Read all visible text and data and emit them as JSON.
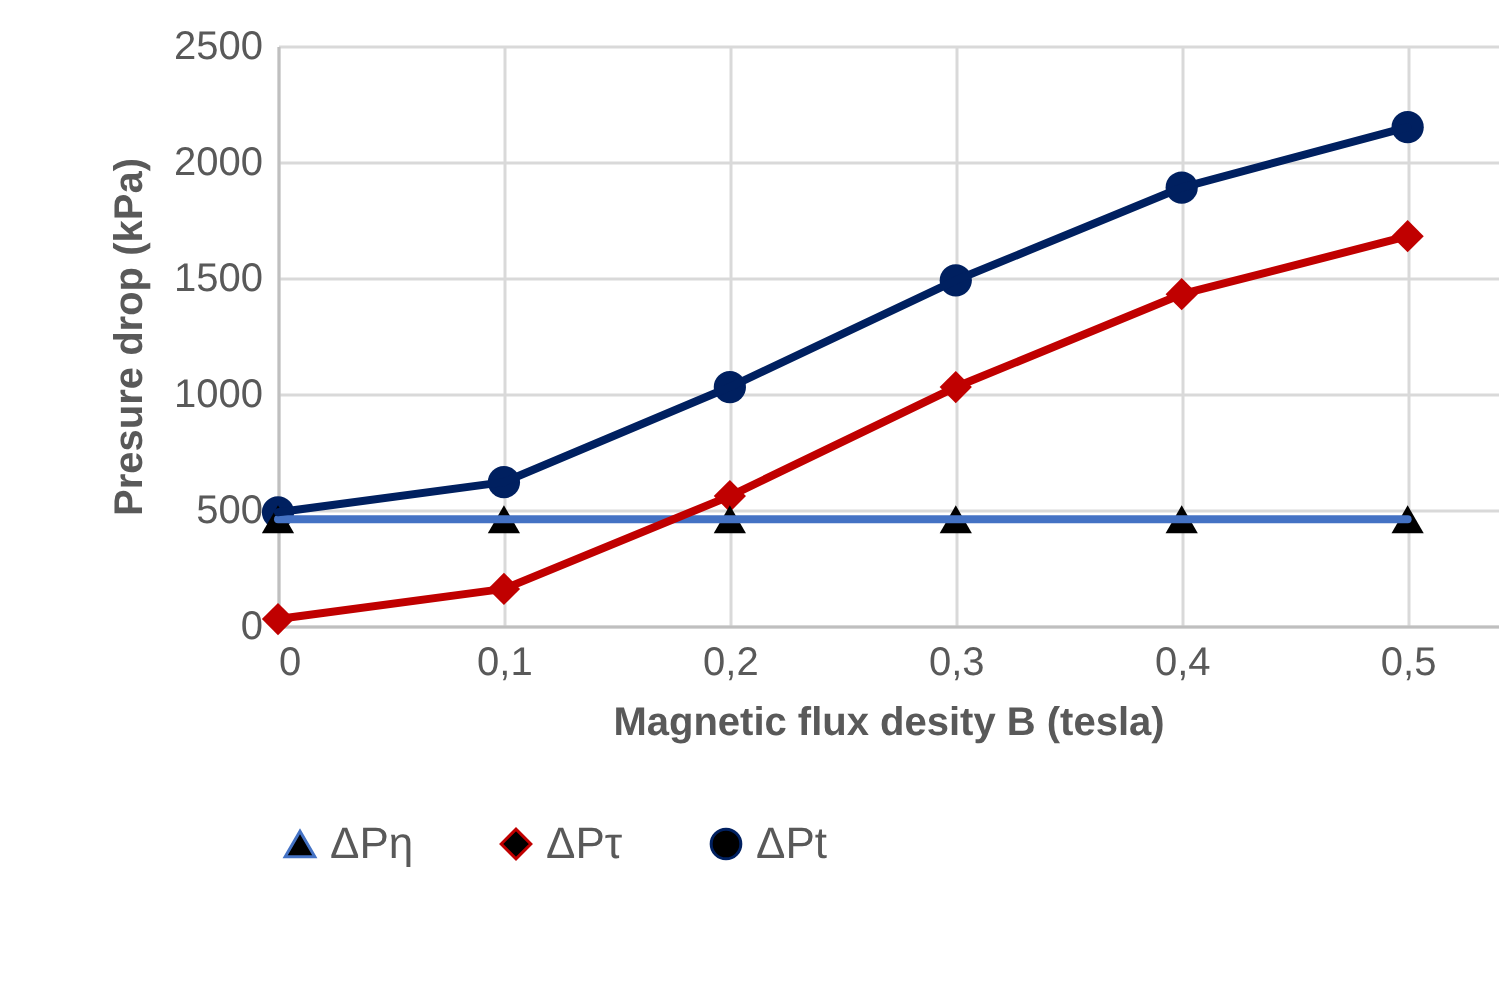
{
  "chart_data": {
    "type": "line",
    "xlabel": "Magnetic flux desity B (tesla)",
    "ylabel": "Presure drop (kPa)",
    "x": [
      0,
      0.1,
      0.2,
      0.3,
      0.4,
      0.5
    ],
    "xlim": [
      0,
      0.54
    ],
    "xticks": [
      0,
      {
        "value": 0.1,
        "label": "0,1"
      },
      {
        "value": 0.2,
        "label": "0,2"
      },
      {
        "value": 0.3,
        "label": "0,3"
      },
      {
        "value": 0.4,
        "label": "0,4"
      },
      {
        "value": 0.5,
        "label": "0,5"
      }
    ],
    "ylim": [
      0,
      2500
    ],
    "yticks": [
      0,
      500,
      1000,
      1500,
      2000,
      2500
    ],
    "grid": true,
    "legend": "bottom",
    "line_style": "solid",
    "series": [
      {
        "name": "ΔPη",
        "color": "#4472c4",
        "marker": "triangle",
        "colors": [
          "#000000",
          "#000000",
          "#000000",
          "#000000",
          "#000000",
          "#000000"
        ],
        "values": [
          460,
          460,
          460,
          460,
          460,
          460
        ]
      },
      {
        "name": "ΔPτ",
        "color": "#c00000",
        "marker": "diamond",
        "values": [
          30,
          160,
          560,
          1030,
          1430,
          1680
        ]
      },
      {
        "name": "ΔPt",
        "color": "#002060",
        "marker": "circle",
        "values": [
          490,
          620,
          1030,
          1490,
          1890,
          2150
        ]
      }
    ]
  }
}
